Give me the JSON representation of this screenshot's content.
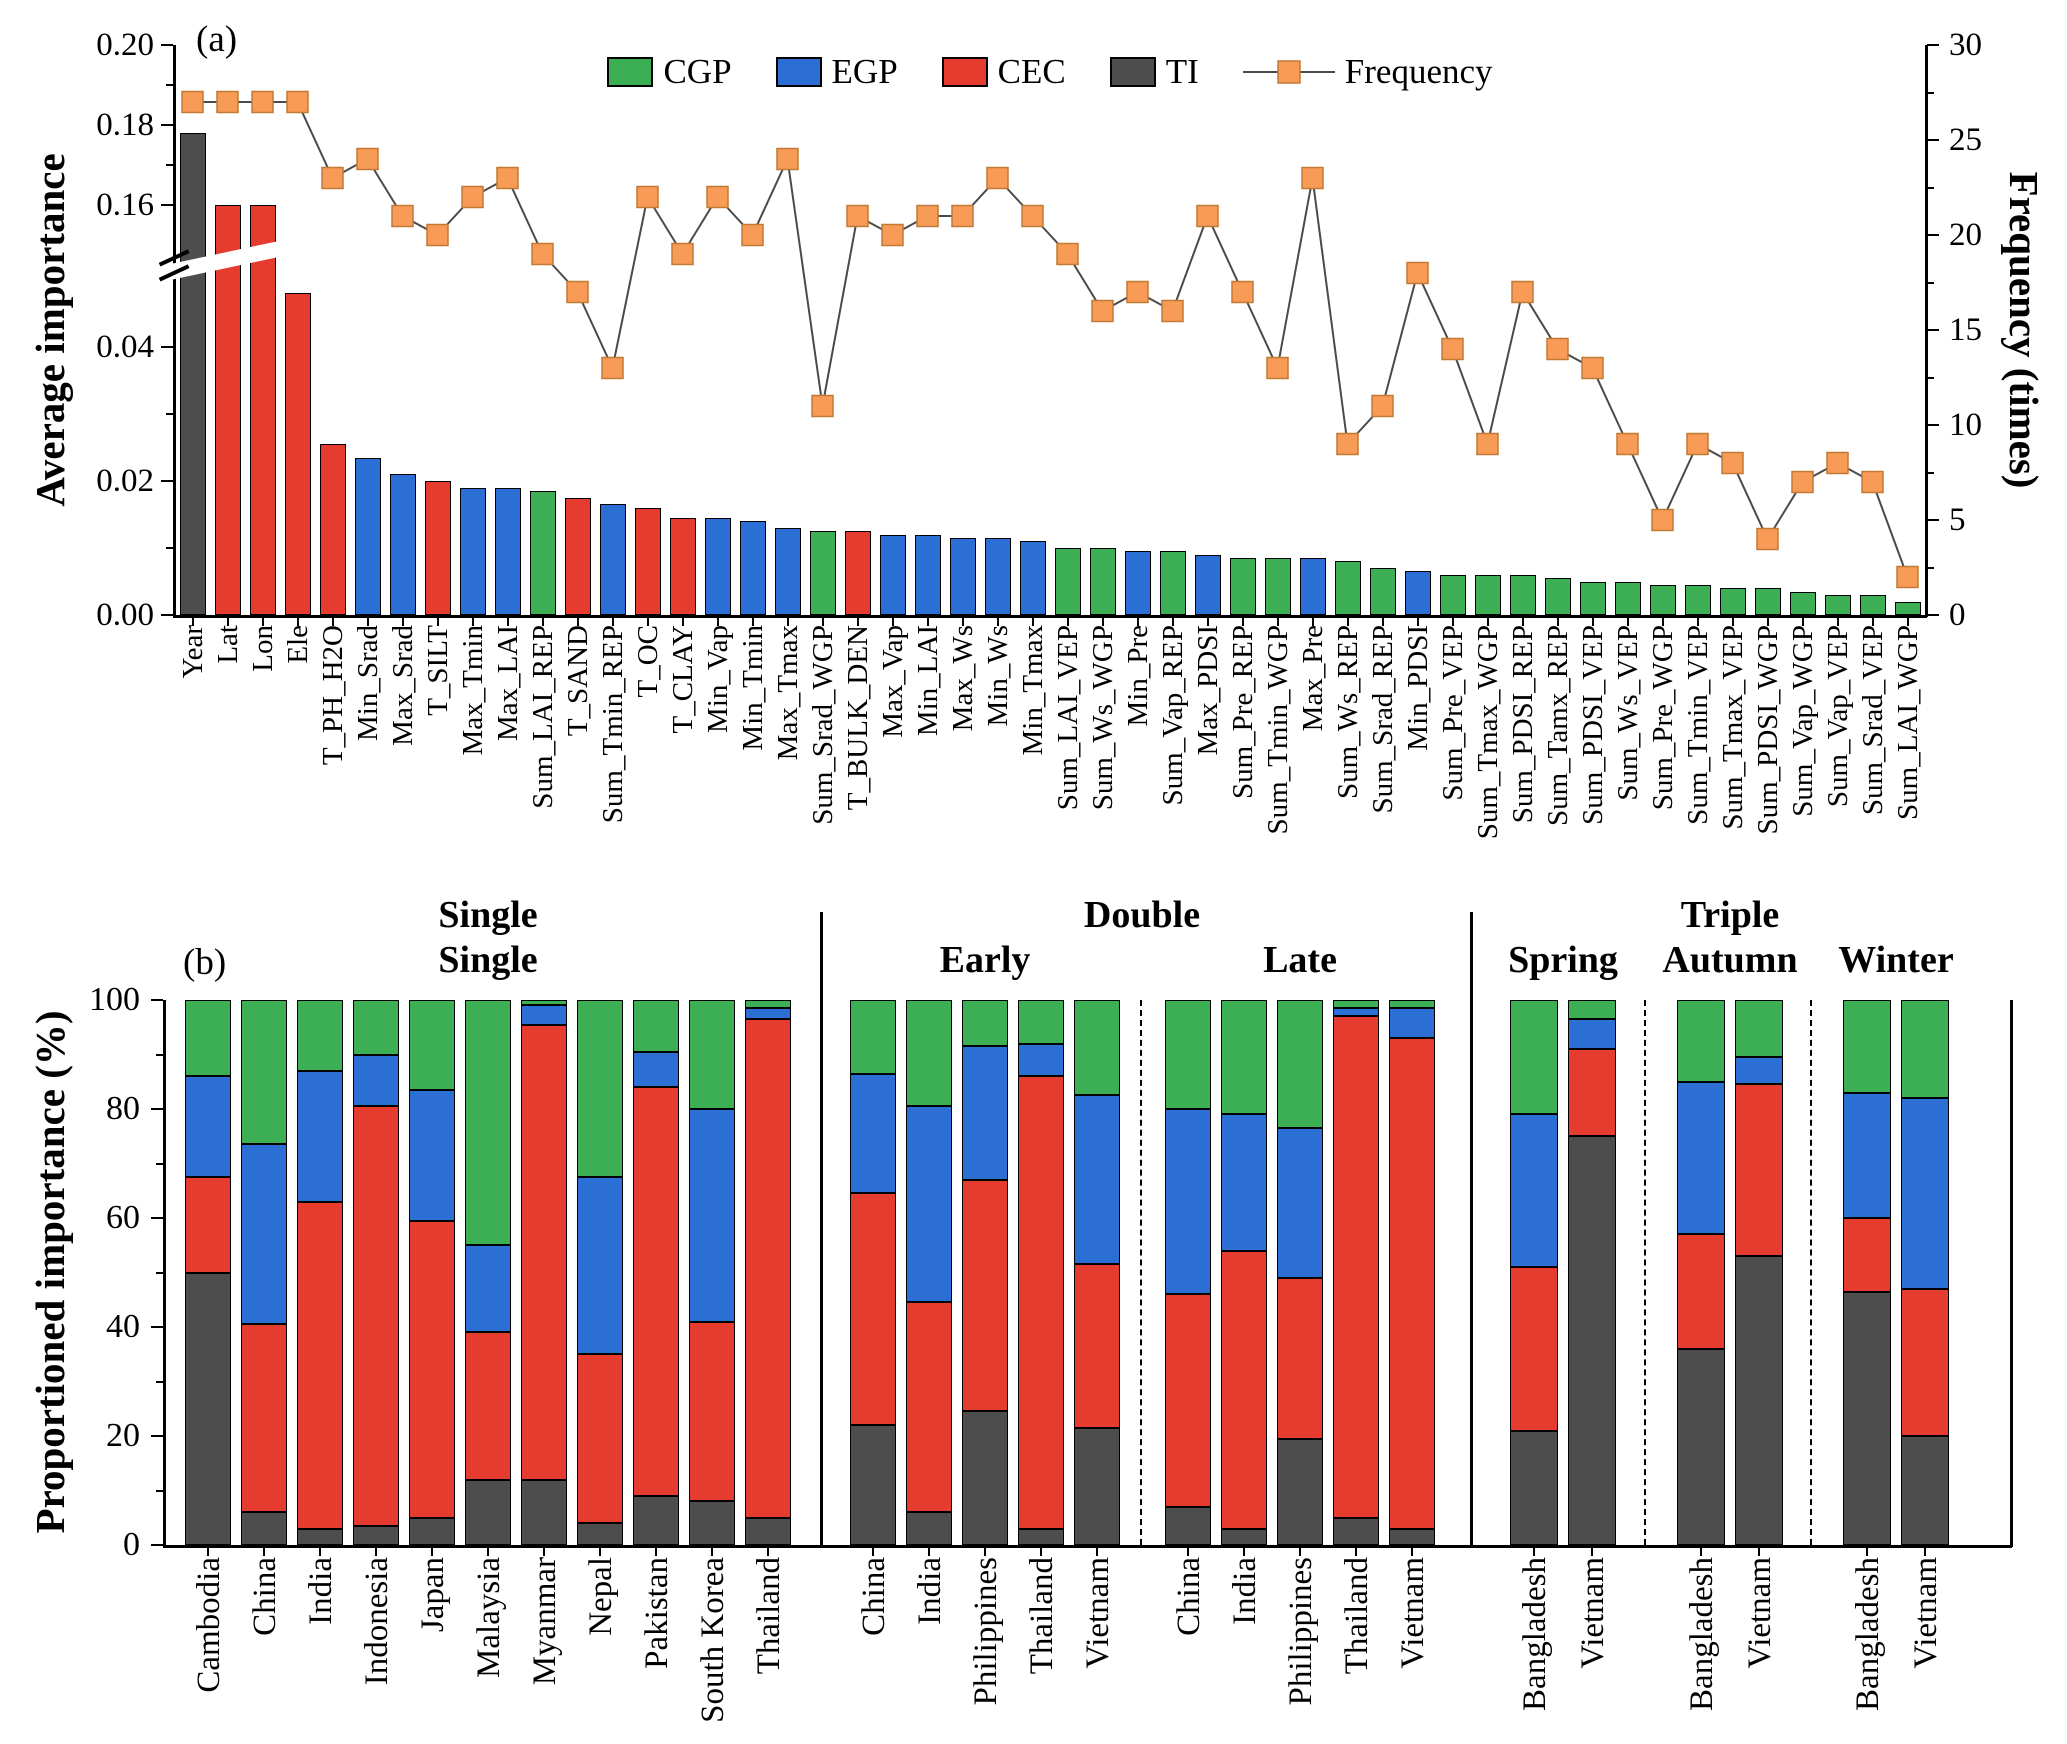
{
  "colors": {
    "CGP": "#3cae54",
    "EGP": "#2b6fd4",
    "CEC": "#e63c30",
    "TI": "#4d4d4d",
    "frequency": "#f79b57"
  },
  "chart_data": [
    {
      "type": "bar-line-combo",
      "tag": "(a)",
      "ylabel_left": "Average importance",
      "ylabel_right": "Frequency (times)",
      "yticks_left": [
        {
          "label": "0.00",
          "value": 0.0
        },
        {
          "label": "0.02",
          "value": 0.02
        },
        {
          "label": "0.04",
          "value": 0.04
        },
        {
          "label": "0.16",
          "value": 0.16
        },
        {
          "label": "0.18",
          "value": 0.18
        },
        {
          "label": "0.20",
          "value": 0.2
        }
      ],
      "yticks_right": [
        0,
        5,
        10,
        15,
        20,
        25,
        30
      ],
      "ylim_right": [
        0,
        30
      ],
      "axis_break": {
        "lower_max": 0.05,
        "upper_min": 0.15,
        "upper_max": 0.2
      },
      "legend": [
        "CGP",
        "EGP",
        "CEC",
        "TI",
        "Frequency"
      ],
      "bars": [
        {
          "name": "Year",
          "group": "TI",
          "importance": 0.178,
          "frequency": 27
        },
        {
          "name": "Lat",
          "group": "CEC",
          "importance": 0.16,
          "frequency": 27
        },
        {
          "name": "Lon",
          "group": "CEC",
          "importance": 0.16,
          "frequency": 27
        },
        {
          "name": "Ele",
          "group": "CEC",
          "importance": 0.048,
          "frequency": 27
        },
        {
          "name": "T_PH_H2O",
          "group": "CEC",
          "importance": 0.0255,
          "frequency": 23
        },
        {
          "name": "Min_Srad",
          "group": "EGP",
          "importance": 0.0235,
          "frequency": 24
        },
        {
          "name": "Max_Srad",
          "group": "EGP",
          "importance": 0.021,
          "frequency": 21
        },
        {
          "name": "T_SILT",
          "group": "CEC",
          "importance": 0.02,
          "frequency": 20
        },
        {
          "name": "Max_Tmin",
          "group": "EGP",
          "importance": 0.019,
          "frequency": 22
        },
        {
          "name": "Max_LAI",
          "group": "EGP",
          "importance": 0.019,
          "frequency": 23
        },
        {
          "name": "Sum_LAI_REP",
          "group": "CGP",
          "importance": 0.0185,
          "frequency": 19
        },
        {
          "name": "T_SAND",
          "group": "CEC",
          "importance": 0.0175,
          "frequency": 17
        },
        {
          "name": "Sum_Tmin_REP",
          "group": "EGP",
          "importance": 0.0165,
          "frequency": 13
        },
        {
          "name": "T_OC",
          "group": "CEC",
          "importance": 0.016,
          "frequency": 22
        },
        {
          "name": "T_CLAY",
          "group": "CEC",
          "importance": 0.0145,
          "frequency": 19
        },
        {
          "name": "Min_Vap",
          "group": "EGP",
          "importance": 0.0145,
          "frequency": 22
        },
        {
          "name": "Min_Tmin",
          "group": "EGP",
          "importance": 0.014,
          "frequency": 20
        },
        {
          "name": "Max_Tmax",
          "group": "EGP",
          "importance": 0.013,
          "frequency": 24
        },
        {
          "name": "Sum_Srad_WGP",
          "group": "CGP",
          "importance": 0.0125,
          "frequency": 11
        },
        {
          "name": "T_BULK_DEN",
          "group": "CEC",
          "importance": 0.0125,
          "frequency": 21
        },
        {
          "name": "Max_Vap",
          "group": "EGP",
          "importance": 0.012,
          "frequency": 20
        },
        {
          "name": "Min_LAI",
          "group": "EGP",
          "importance": 0.012,
          "frequency": 21
        },
        {
          "name": "Max_Ws",
          "group": "EGP",
          "importance": 0.0115,
          "frequency": 21
        },
        {
          "name": "Min_Ws",
          "group": "EGP",
          "importance": 0.0115,
          "frequency": 23
        },
        {
          "name": "Min_Tmax",
          "group": "EGP",
          "importance": 0.011,
          "frequency": 21
        },
        {
          "name": "Sum_LAI_VEP",
          "group": "CGP",
          "importance": 0.01,
          "frequency": 19
        },
        {
          "name": "Sum_Ws_WGP",
          "group": "CGP",
          "importance": 0.01,
          "frequency": 16
        },
        {
          "name": "Min_Pre",
          "group": "EGP",
          "importance": 0.0095,
          "frequency": 17
        },
        {
          "name": "Sum_Vap_REP",
          "group": "CGP",
          "importance": 0.0095,
          "frequency": 16
        },
        {
          "name": "Max_PDSI",
          "group": "EGP",
          "importance": 0.009,
          "frequency": 21
        },
        {
          "name": "Sum_Pre_REP",
          "group": "CGP",
          "importance": 0.0085,
          "frequency": 17
        },
        {
          "name": "Sum_Tmin_WGP",
          "group": "CGP",
          "importance": 0.0085,
          "frequency": 13
        },
        {
          "name": "Max_Pre",
          "group": "EGP",
          "importance": 0.0085,
          "frequency": 23
        },
        {
          "name": "Sum_Ws_REP",
          "group": "CGP",
          "importance": 0.008,
          "frequency": 9
        },
        {
          "name": "Sum_Srad_REP",
          "group": "CGP",
          "importance": 0.007,
          "frequency": 11
        },
        {
          "name": "Min_PDSI",
          "group": "EGP",
          "importance": 0.0065,
          "frequency": 18
        },
        {
          "name": "Sum_Pre_VEP",
          "group": "CGP",
          "importance": 0.006,
          "frequency": 14
        },
        {
          "name": "Sum_Tmax_WGP",
          "group": "CGP",
          "importance": 0.006,
          "frequency": 9
        },
        {
          "name": "Sum_PDSI_REP",
          "group": "CGP",
          "importance": 0.006,
          "frequency": 17
        },
        {
          "name": "Sum_Tamx_REP",
          "group": "CGP",
          "importance": 0.0055,
          "frequency": 14
        },
        {
          "name": "Sum_PDSI_VEP",
          "group": "CGP",
          "importance": 0.005,
          "frequency": 13
        },
        {
          "name": "Sum_Ws_VEP",
          "group": "CGP",
          "importance": 0.005,
          "frequency": 9
        },
        {
          "name": "Sum_Pre_WGP",
          "group": "CGP",
          "importance": 0.0045,
          "frequency": 5
        },
        {
          "name": "Sum_Tmin_VEP",
          "group": "CGP",
          "importance": 0.0045,
          "frequency": 9
        },
        {
          "name": "Sum_Tmax_VEP",
          "group": "CGP",
          "importance": 0.004,
          "frequency": 8
        },
        {
          "name": "Sum_PDSI_WGP",
          "group": "CGP",
          "importance": 0.004,
          "frequency": 4
        },
        {
          "name": "Sum_Vap_WGP",
          "group": "CGP",
          "importance": 0.0035,
          "frequency": 7
        },
        {
          "name": "Sum_Vap_VEP",
          "group": "CGP",
          "importance": 0.003,
          "frequency": 8
        },
        {
          "name": "Sum_Srad_VEP",
          "group": "CGP",
          "importance": 0.003,
          "frequency": 7
        },
        {
          "name": "Sum_LAI_WGP",
          "group": "CGP",
          "importance": 0.002,
          "frequency": 2
        }
      ]
    },
    {
      "type": "stacked-bar-100",
      "tag": "(b)",
      "ylabel": "Proportioned importance (%)",
      "yticks": [
        0,
        20,
        40,
        60,
        80,
        100
      ],
      "stack_order": [
        "TI",
        "CEC",
        "EGP",
        "CGP"
      ],
      "section_headers": [
        "Single",
        "Double",
        "Triple"
      ],
      "subgroups": [
        {
          "section": "Single",
          "label": "Single",
          "bars": [
            {
              "country": "Cambodia",
              "values": {
                "TI": 50,
                "CEC": 17.5,
                "EGP": 18.5,
                "CGP": 14
              }
            },
            {
              "country": "China",
              "values": {
                "TI": 6,
                "CEC": 34.5,
                "EGP": 33,
                "CGP": 26.5
              }
            },
            {
              "country": "India",
              "values": {
                "TI": 3,
                "CEC": 60,
                "EGP": 24,
                "CGP": 13
              }
            },
            {
              "country": "Indonesia",
              "values": {
                "TI": 3.5,
                "CEC": 77,
                "EGP": 9.5,
                "CGP": 10
              }
            },
            {
              "country": "Japan",
              "values": {
                "TI": 5,
                "CEC": 54.5,
                "EGP": 24,
                "CGP": 16.5
              }
            },
            {
              "country": "Malaysia",
              "values": {
                "TI": 12,
                "CEC": 27,
                "EGP": 16,
                "CGP": 45
              }
            },
            {
              "country": "Myanmar",
              "values": {
                "TI": 12,
                "CEC": 83.5,
                "EGP": 3.5,
                "CGP": 1
              }
            },
            {
              "country": "Nepal",
              "values": {
                "TI": 4,
                "CEC": 31,
                "EGP": 32.5,
                "CGP": 32.5
              }
            },
            {
              "country": "Pakistan",
              "values": {
                "TI": 9,
                "CEC": 75,
                "EGP": 6.5,
                "CGP": 9.5
              }
            },
            {
              "country": "South Korea",
              "values": {
                "TI": 8,
                "CEC": 33,
                "EGP": 39,
                "CGP": 20
              }
            },
            {
              "country": "Thailand",
              "values": {
                "TI": 5,
                "CEC": 91.5,
                "EGP": 2,
                "CGP": 1.5
              }
            }
          ]
        },
        {
          "section": "Double",
          "label": "Early",
          "bars": [
            {
              "country": "China",
              "values": {
                "TI": 22,
                "CEC": 42.5,
                "EGP": 22,
                "CGP": 13.5
              }
            },
            {
              "country": "India",
              "values": {
                "TI": 6,
                "CEC": 38.5,
                "EGP": 36,
                "CGP": 19.5
              }
            },
            {
              "country": "Philippines",
              "values": {
                "TI": 24.5,
                "CEC": 42.5,
                "EGP": 24.5,
                "CGP": 8.5
              }
            },
            {
              "country": "Thailand",
              "values": {
                "TI": 3,
                "CEC": 83,
                "EGP": 6,
                "CGP": 8
              }
            },
            {
              "country": "Vietnam",
              "values": {
                "TI": 21.5,
                "CEC": 30,
                "EGP": 31,
                "CGP": 17.5
              }
            }
          ]
        },
        {
          "section": "Double",
          "label": "Late",
          "bars": [
            {
              "country": "China",
              "values": {
                "TI": 7,
                "CEC": 39,
                "EGP": 34,
                "CGP": 20
              }
            },
            {
              "country": "India",
              "values": {
                "TI": 3,
                "CEC": 51,
                "EGP": 25,
                "CGP": 21
              }
            },
            {
              "country": "Philippines",
              "values": {
                "TI": 19.5,
                "CEC": 29.5,
                "EGP": 27.5,
                "CGP": 23.5
              }
            },
            {
              "country": "Thailand",
              "values": {
                "TI": 5,
                "CEC": 92,
                "EGP": 1.5,
                "CGP": 1.5
              }
            },
            {
              "country": "Vietnam",
              "values": {
                "TI": 3,
                "CEC": 90,
                "EGP": 5.5,
                "CGP": 1.5
              }
            }
          ]
        },
        {
          "section": "Triple",
          "label": "Spring",
          "bars": [
            {
              "country": "Bangladesh",
              "values": {
                "TI": 21,
                "CEC": 30,
                "EGP": 28,
                "CGP": 21
              }
            },
            {
              "country": "Vietnam",
              "values": {
                "TI": 75,
                "CEC": 16,
                "EGP": 5.5,
                "CGP": 3.5
              }
            }
          ]
        },
        {
          "section": "Triple",
          "label": "Autumn",
          "bars": [
            {
              "country": "Bangladesh",
              "values": {
                "TI": 36,
                "CEC": 21,
                "EGP": 28,
                "CGP": 15
              }
            },
            {
              "country": "Vietnam",
              "values": {
                "TI": 53,
                "CEC": 31.5,
                "EGP": 5,
                "CGP": 10.5
              }
            }
          ]
        },
        {
          "section": "Triple",
          "label": "Winter",
          "bars": [
            {
              "country": "Bangladesh",
              "values": {
                "TI": 46.5,
                "CEC": 13.5,
                "EGP": 23,
                "CGP": 17
              }
            },
            {
              "country": "Vietnam",
              "values": {
                "TI": 20,
                "CEC": 27,
                "EGP": 35,
                "CGP": 18
              }
            }
          ]
        }
      ]
    }
  ]
}
